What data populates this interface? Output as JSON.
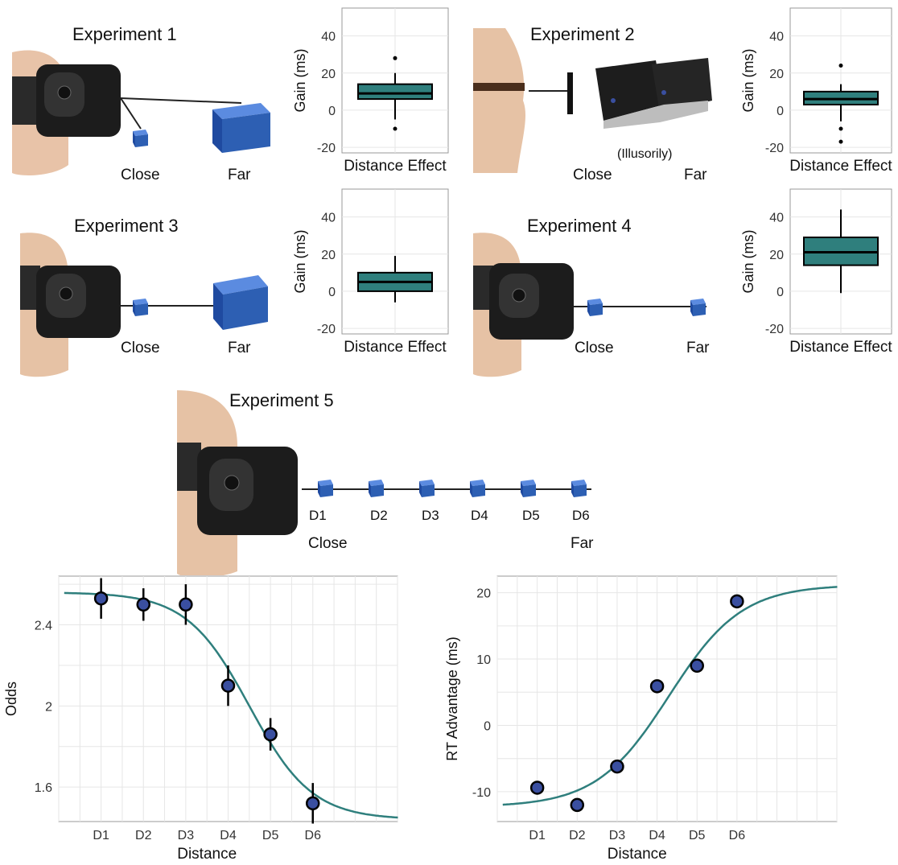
{
  "experiments": [
    {
      "title": "Experiment 1",
      "labels": [
        "Close",
        "Far"
      ]
    },
    {
      "title": "Experiment 2",
      "labels": [
        "Close",
        "Far"
      ],
      "note": "(Illusorily)"
    },
    {
      "title": "Experiment 3",
      "labels": [
        "Close",
        "Far"
      ]
    },
    {
      "title": "Experiment 4",
      "labels": [
        "Close",
        "Far"
      ]
    },
    {
      "title": "Experiment 5",
      "distances": [
        "D1",
        "D2",
        "D3",
        "D4",
        "D5",
        "D6"
      ],
      "ends": [
        "Close",
        "Far"
      ]
    }
  ],
  "colors": {
    "teal": "#2f7f7d",
    "point": "#3a4fa0",
    "cube": "#2d5fb3"
  },
  "chart_data": [
    {
      "type": "box",
      "panel": "Experiment 1",
      "ylabel": "Gain (ms)",
      "xlabel": "Distance Effect",
      "ylim": [
        -23,
        55
      ],
      "yticks": [
        -20,
        0,
        20,
        40
      ],
      "box": {
        "whisker_low": -5,
        "q1": 6,
        "median": 9,
        "q3": 14,
        "whisker_high": 20,
        "outliers": [
          28,
          -10
        ]
      }
    },
    {
      "type": "box",
      "panel": "Experiment 2",
      "ylabel": "Gain (ms)",
      "xlabel": "Distance Effect",
      "ylim": [
        -23,
        55
      ],
      "yticks": [
        -20,
        0,
        20,
        40
      ],
      "box": {
        "whisker_low": -6,
        "q1": 3,
        "median": 6,
        "q3": 10,
        "whisker_high": 14,
        "outliers": [
          24,
          -10,
          -17
        ]
      }
    },
    {
      "type": "box",
      "panel": "Experiment 3",
      "ylabel": "Gain (ms)",
      "xlabel": "Distance Effect",
      "ylim": [
        -23,
        55
      ],
      "yticks": [
        -20,
        0,
        20,
        40
      ],
      "box": {
        "whisker_low": -6,
        "q1": 0,
        "median": 5,
        "q3": 10,
        "whisker_high": 19,
        "outliers": []
      }
    },
    {
      "type": "box",
      "panel": "Experiment 4",
      "ylabel": "Gain (ms)",
      "xlabel": "Distance Effect",
      "ylim": [
        -23,
        55
      ],
      "yticks": [
        -20,
        0,
        20,
        40
      ],
      "box": {
        "whisker_low": -1,
        "q1": 14,
        "median": 21,
        "q3": 29,
        "whisker_high": 44,
        "outliers": []
      }
    },
    {
      "type": "scatter",
      "panel": "Experiment 5 odds",
      "ylabel": "Odds",
      "xlabel": "Distance",
      "categories": [
        "D1",
        "D2",
        "D3",
        "D4",
        "D5",
        "D6"
      ],
      "x": [
        1,
        2,
        3,
        4,
        5,
        6
      ],
      "xlim": [
        0.0,
        8.0
      ],
      "ylim": [
        1.43,
        2.64
      ],
      "yticks": [
        1.6,
        2.0,
        2.4
      ],
      "values": [
        2.53,
        2.5,
        2.5,
        2.1,
        1.86,
        1.52
      ],
      "err": [
        0.1,
        0.08,
        0.1,
        0.1,
        0.08,
        0.1
      ],
      "curve": {
        "lower": 1.44,
        "upper": 2.56,
        "mid": 4.5,
        "slope": 1.35,
        "decreasing": true
      }
    },
    {
      "type": "scatter",
      "panel": "Experiment 5 RT",
      "ylabel": "RT Advantage (ms)",
      "xlabel": "Distance",
      "categories": [
        "D1",
        "D2",
        "D3",
        "D4",
        "D5",
        "D6"
      ],
      "x": [
        1,
        2,
        3,
        4,
        5,
        6
      ],
      "xlim": [
        0.0,
        8.5
      ],
      "ylim": [
        -14.5,
        22.5
      ],
      "yticks": [
        -10,
        0,
        10,
        20
      ],
      "values": [
        -9.4,
        -12.0,
        -6.2,
        5.9,
        9.0,
        18.7
      ],
      "err": [
        0.4,
        0.4,
        0.4,
        0.4,
        0.4,
        1.0
      ],
      "curve": {
        "lower": -12.3,
        "upper": 21.2,
        "mid": 4.3,
        "slope": 1.1,
        "decreasing": false
      }
    }
  ]
}
